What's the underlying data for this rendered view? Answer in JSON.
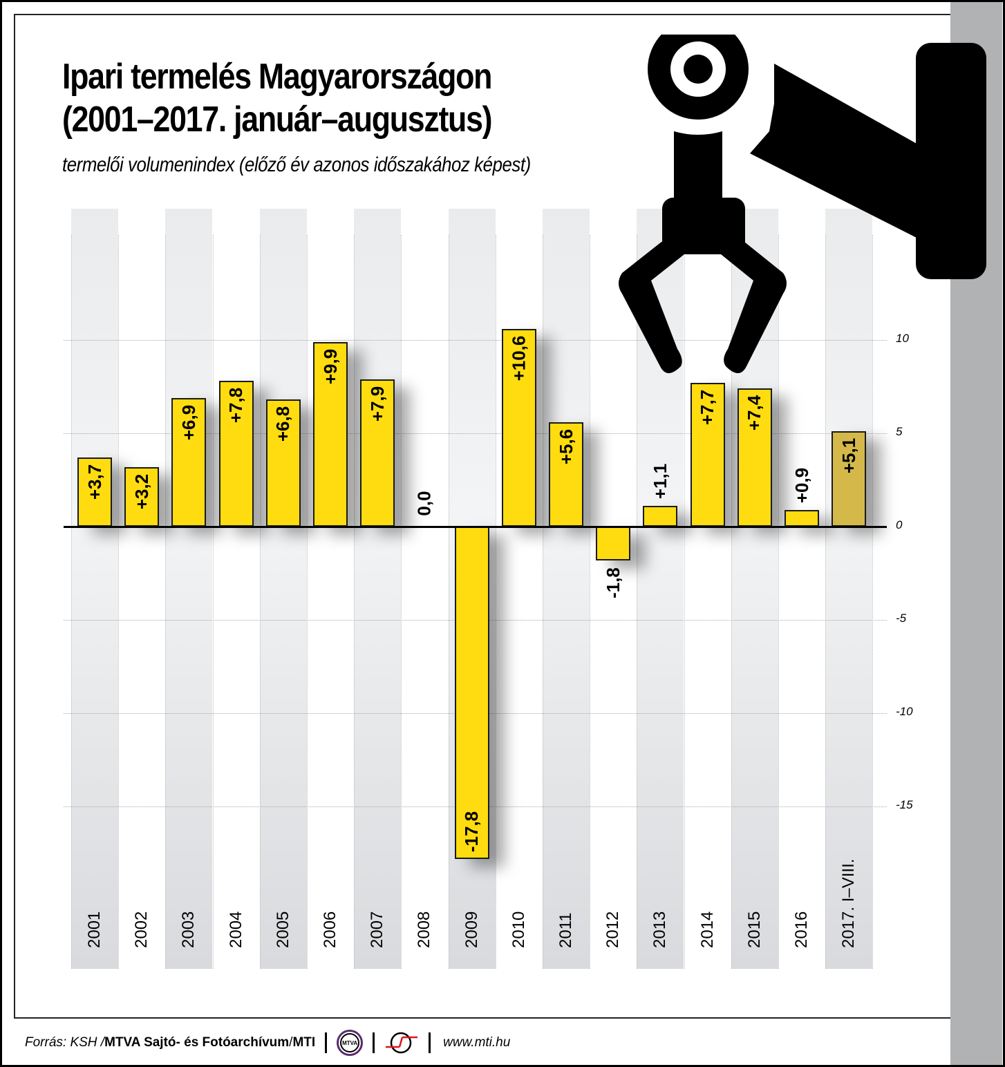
{
  "header": {
    "title_line1": "Ipari termelés Magyarországon",
    "title_line2": "(2001–2017. január–augusztus)",
    "subtitle": "termelői volumenindex (előző év azonos időszakához képest)"
  },
  "footer": {
    "source_prefix": "Forrás: KSH / ",
    "source_bold": "MTVA Sajtó- és Fotóarchívum",
    "source_sep": " / ",
    "source_mti": "MTI",
    "mtva_logo_text": "MTVA",
    "url": "www.mti.hu"
  },
  "colors": {
    "bar": "#ffdc0f",
    "bar_partial_year": "#d4b94a",
    "stripe": "#e6e8ea",
    "side_strip": "#b1b2b4"
  },
  "axis": {
    "ticks": [
      {
        "value": 10,
        "label": "10"
      },
      {
        "value": 5,
        "label": "5"
      },
      {
        "value": 0,
        "label": "0"
      },
      {
        "value": -5,
        "label": "-5"
      },
      {
        "value": -10,
        "label": "-10"
      },
      {
        "value": -15,
        "label": "-15"
      }
    ]
  },
  "chart_data": {
    "type": "bar",
    "title": "Ipari termelés Magyarországon (2001–2017. január–augusztus)",
    "subtitle": "termelői volumenindex (előző év azonos időszakához képest)",
    "xlabel": "",
    "ylabel": "",
    "ylim": [
      -18,
      11
    ],
    "yticks": [
      10,
      5,
      0,
      -5,
      -10,
      -15
    ],
    "grid": true,
    "legend": null,
    "categories": [
      "2001",
      "2002",
      "2003",
      "2004",
      "2005",
      "2006",
      "2007",
      "2008",
      "2009",
      "2010",
      "2011",
      "2012",
      "2013",
      "2014",
      "2015",
      "2016",
      "2017. I–VIII."
    ],
    "values": [
      3.7,
      3.2,
      6.9,
      7.8,
      6.8,
      9.9,
      7.9,
      0.0,
      -17.8,
      10.6,
      5.6,
      -1.8,
      1.1,
      7.7,
      7.4,
      0.9,
      5.1
    ],
    "labels": [
      "+3,7",
      "+3,2",
      "+6,9",
      "+7,8",
      "+6,8",
      "+9,9",
      "+7,9",
      "0,0",
      "-17,8",
      "+10,6",
      "+5,6",
      "-1,8",
      "+1,1",
      "+7,7",
      "+7,4",
      "+0,9",
      "+5,1"
    ],
    "highlight": {
      "index": 16,
      "note": "partial year (January–August), darker bar color"
    }
  }
}
